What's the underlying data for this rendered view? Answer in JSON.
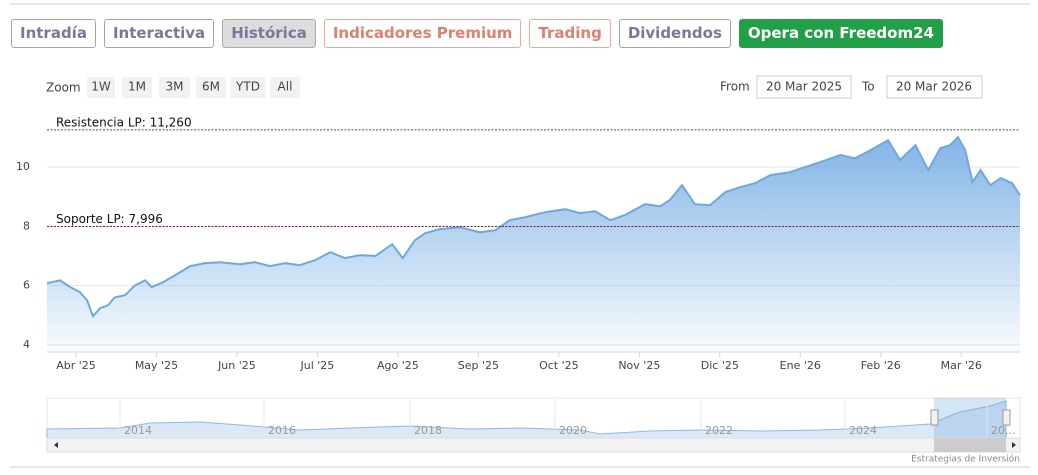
{
  "tabs": [
    "Intradía",
    "Interactiva",
    "Histórica",
    "Indicadores Premium",
    "Trading",
    "Dividendos",
    "Opera con Freedom24"
  ],
  "zoom": {
    "label": "Zoom",
    "buttons": [
      "1W",
      "1M",
      "3M",
      "6M",
      "YTD",
      "All"
    ]
  },
  "range": {
    "from_label": "From",
    "from": "20 Mar 2025",
    "to_label": "To",
    "to": "20 Mar 2026"
  },
  "chart_data": {
    "type": "area",
    "color": "#6fa8dc",
    "x": [
      -0.36,
      -0.2,
      -0.07,
      0.05,
      0.14,
      0.21,
      0.3,
      0.4,
      0.48,
      0.61,
      0.73,
      0.86,
      0.94,
      1.07,
      1.23,
      1.42,
      1.6,
      1.79,
      2.04,
      2.22,
      2.41,
      2.6,
      2.78,
      2.97,
      3.16,
      3.34,
      3.53,
      3.72,
      3.93,
      4.06,
      4.21,
      4.34,
      4.52,
      4.77,
      5.02,
      5.21,
      5.39,
      5.58,
      5.83,
      6.08,
      6.26,
      6.45,
      6.64,
      6.82,
      7.07,
      7.26,
      7.38,
      7.53,
      7.69,
      7.88,
      8.07,
      8.25,
      8.44,
      8.63,
      8.87,
      9.06,
      9.25,
      9.5,
      9.68,
      9.87,
      10.09,
      10.24,
      10.43,
      10.59,
      10.74,
      10.86,
      10.96,
      11.05,
      11.14,
      11.24,
      11.36,
      11.49,
      11.63,
      11.73
    ],
    "values": [
      6.08,
      6.18,
      5.95,
      5.78,
      5.5,
      4.97,
      5.24,
      5.34,
      5.6,
      5.68,
      6.0,
      6.18,
      5.95,
      6.1,
      6.35,
      6.66,
      6.76,
      6.79,
      6.72,
      6.79,
      6.66,
      6.76,
      6.69,
      6.86,
      7.13,
      6.93,
      7.03,
      7.0,
      7.4,
      6.93,
      7.53,
      7.77,
      7.91,
      7.97,
      7.8,
      7.87,
      8.21,
      8.31,
      8.48,
      8.58,
      8.45,
      8.51,
      8.21,
      8.38,
      8.75,
      8.68,
      8.89,
      9.39,
      8.75,
      8.72,
      9.16,
      9.32,
      9.46,
      9.73,
      9.83,
      10.0,
      10.17,
      10.41,
      10.3,
      10.57,
      10.91,
      10.24,
      10.74,
      9.9,
      10.64,
      10.74,
      11.01,
      10.57,
      9.49,
      9.9,
      9.39,
      9.63,
      9.46,
      9.05
    ],
    "xlim": [
      -0.36,
      11.73
    ],
    "xticks": [
      {
        "value": 0,
        "label": "Abr '25"
      },
      {
        "value": 1,
        "label": "May '25"
      },
      {
        "value": 2,
        "label": "Jun '25"
      },
      {
        "value": 3,
        "label": "Jul '25"
      },
      {
        "value": 4,
        "label": "Ago '25"
      },
      {
        "value": 5,
        "label": "Sep '25"
      },
      {
        "value": 6,
        "label": "Oct '25"
      },
      {
        "value": 7,
        "label": "Nov '25"
      },
      {
        "value": 8,
        "label": "Dic '25"
      },
      {
        "value": 9,
        "label": "Ene '26"
      },
      {
        "value": 10,
        "label": "Feb '26"
      },
      {
        "value": 11,
        "label": "Mar '26"
      }
    ],
    "ylim": [
      3.76,
      11.76
    ],
    "yticks": [
      4,
      6,
      8,
      10
    ],
    "grid": true,
    "annotations": [
      {
        "label": "Resistencia LP: 11,260",
        "value": 11.26,
        "color": "#3b5e3b"
      },
      {
        "label": "Soporte LP: 7,996",
        "value": 7.996,
        "color": "#7a1f3d"
      }
    ]
  },
  "navigator": {
    "labels": [
      "2014",
      "2016",
      "2018",
      "2020",
      "2022",
      "2024",
      "20..."
    ]
  },
  "credit": "Estrategias de Inversión"
}
